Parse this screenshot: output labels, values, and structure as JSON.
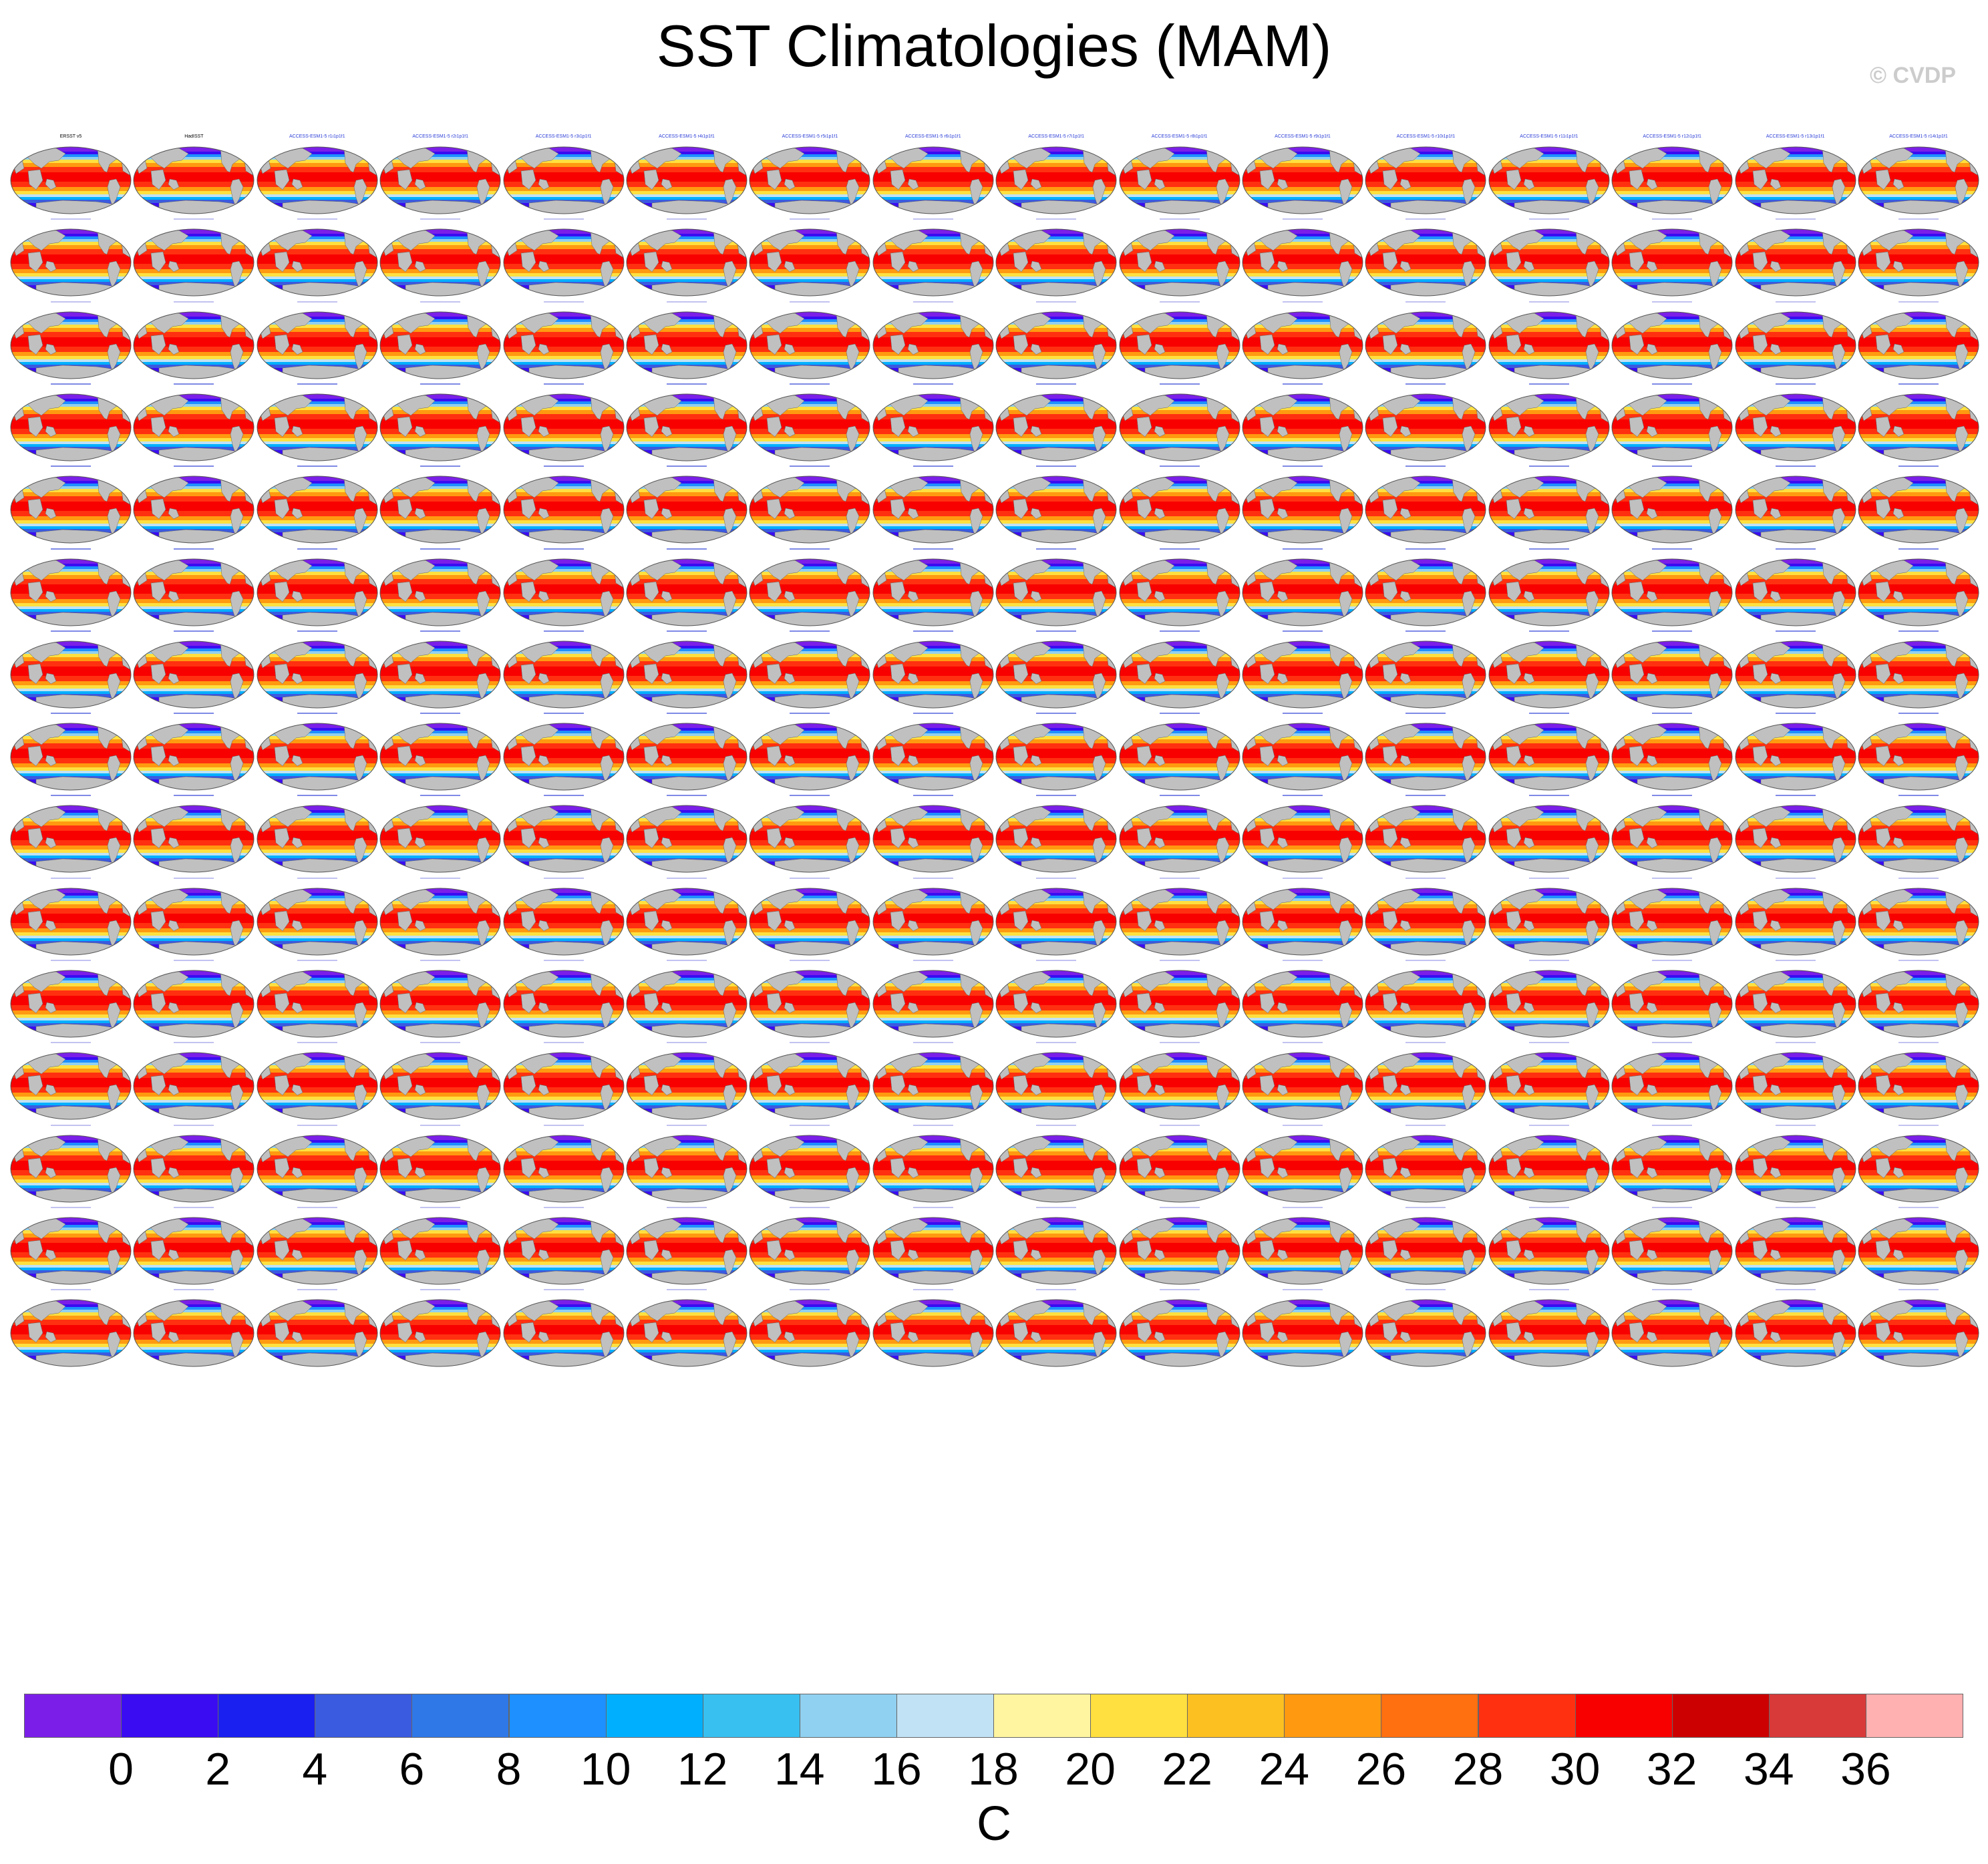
{
  "title": "SST Climatologies (MAM)",
  "watermark": "© CVDP",
  "colors": {
    "land": "#c0c0c0",
    "map_outline": "#555555",
    "obs_title": "#000000",
    "model_title_blue": "#2a3cd6",
    "model_title_pale": "#9a9ae8"
  },
  "chart_data": {
    "type": "heatmap",
    "title": "SST Climatologies (MAM)",
    "layout": {
      "rows": 15,
      "columns": 16,
      "panels": 240
    },
    "panel_titles": [
      "ERSST v5",
      "HadISST",
      "ACCESS-ESM1-5 r1i1p1f1",
      "ACCESS-ESM1-5 r2i1p1f1",
      "ACCESS-ESM1-5 r3i1p1f1",
      "ACCESS-ESM1-5 r4i1p1f1",
      "ACCESS-ESM1-5 r5i1p1f1",
      "ACCESS-ESM1-5 r6i1p1f1",
      "ACCESS-ESM1-5 r7i1p1f1",
      "ACCESS-ESM1-5 r8i1p1f1",
      "ACCESS-ESM1-5 r9i1p1f1",
      "ACCESS-ESM1-5 r10i1p1f1",
      "ACCESS-ESM1-5 r11i1p1f1",
      "ACCESS-ESM1-5 r12i1p1f1",
      "ACCESS-ESM1-5 r13i1p1f1",
      "ACCESS-ESM1-5 r14i1p1f1"
    ],
    "colorbar": {
      "label": "C",
      "tick_labels": [
        "0",
        "2",
        "4",
        "6",
        "8",
        "10",
        "12",
        "14",
        "16",
        "18",
        "20",
        "22",
        "24",
        "26",
        "28",
        "30",
        "32",
        "34",
        "36"
      ],
      "levels": [
        0,
        2,
        4,
        6,
        8,
        10,
        12,
        14,
        16,
        18,
        20,
        22,
        24,
        26,
        28,
        30,
        32,
        34,
        36
      ],
      "colors": [
        "#7b1fe8",
        "#3a0cf2",
        "#1a20f0",
        "#3a5ae0",
        "#2e78e8",
        "#1e90ff",
        "#00b0ff",
        "#38c0f0",
        "#90d0f0",
        "#c0e2f4",
        "#fff5a0",
        "#ffe040",
        "#fcc020",
        "#ff9a10",
        "#ff7010",
        "#ff3010",
        "#f80000",
        "#cc0000",
        "#d83a3a",
        "#ffb0b0"
      ]
    },
    "units": "C"
  }
}
